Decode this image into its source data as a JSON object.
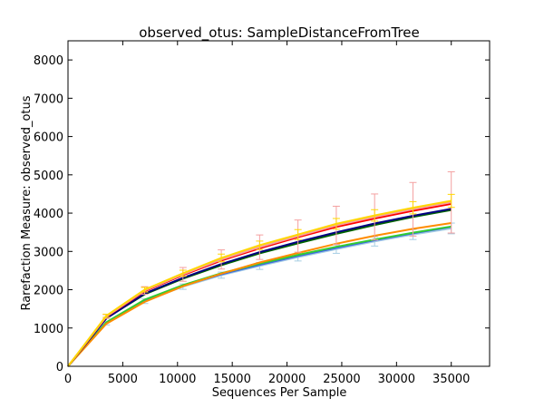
{
  "chart_data": {
    "type": "line",
    "title": "observed_otus: SampleDistanceFromTree",
    "xlabel": "Sequences Per Sample",
    "ylabel": "Rarefaction Measure: observed_otus",
    "xlim": [
      0,
      38500
    ],
    "ylim": [
      0,
      8500
    ],
    "xticks": [
      0,
      5000,
      10000,
      15000,
      20000,
      25000,
      30000,
      35000
    ],
    "yticks": [
      0,
      1000,
      2000,
      3000,
      4000,
      5000,
      6000,
      7000,
      8000
    ],
    "grid": false,
    "legend": "none",
    "x": [
      0,
      3500,
      7000,
      10500,
      14000,
      17500,
      21000,
      24500,
      28000,
      31500,
      35000
    ],
    "series": [
      {
        "color": "#a6cee3",
        "values": [
          0,
          1120,
          1700,
          2080,
          2380,
          2620,
          2850,
          3060,
          3260,
          3440,
          3600
        ],
        "err": [
          0,
          40,
          60,
          70,
          80,
          90,
          100,
          110,
          120,
          130,
          140
        ]
      },
      {
        "color": "#4169e1",
        "values": [
          0,
          1130,
          1710,
          2100,
          2400,
          2650,
          2880,
          3090,
          3290,
          3470,
          3640
        ],
        "err": null
      },
      {
        "color": "#32cd32",
        "values": [
          0,
          1150,
          1740,
          2120,
          2430,
          2680,
          2910,
          3120,
          3310,
          3490,
          3650
        ],
        "err": null
      },
      {
        "color": "#ff8c00",
        "values": [
          0,
          1110,
          1680,
          2090,
          2420,
          2710,
          2960,
          3200,
          3410,
          3590,
          3740
        ],
        "err": null
      },
      {
        "color": "#006400",
        "values": [
          0,
          1260,
          1880,
          2290,
          2640,
          2950,
          3210,
          3460,
          3690,
          3900,
          4080
        ],
        "err": null
      },
      {
        "color": "#000080",
        "values": [
          0,
          1250,
          1900,
          2310,
          2670,
          2980,
          3250,
          3500,
          3730,
          3930,
          4110
        ],
        "err": null
      },
      {
        "color": "#ff0000",
        "values": [
          0,
          1290,
          1960,
          2380,
          2760,
          3080,
          3370,
          3640,
          3860,
          4060,
          4240
        ],
        "err": null
      },
      {
        "color": "#f4a0a0",
        "values": [
          0,
          1300,
          1980,
          2400,
          2790,
          3110,
          3400,
          3680,
          3900,
          4100,
          4280
        ],
        "err": [
          0,
          50,
          100,
          180,
          250,
          320,
          420,
          500,
          600,
          700,
          800
        ]
      },
      {
        "color": "#ffd700",
        "values": [
          0,
          1320,
          2000,
          2430,
          2830,
          3160,
          3440,
          3720,
          3940,
          4140,
          4320
        ],
        "err": [
          0,
          40,
          60,
          80,
          100,
          110,
          130,
          140,
          150,
          160,
          170
        ]
      }
    ]
  }
}
